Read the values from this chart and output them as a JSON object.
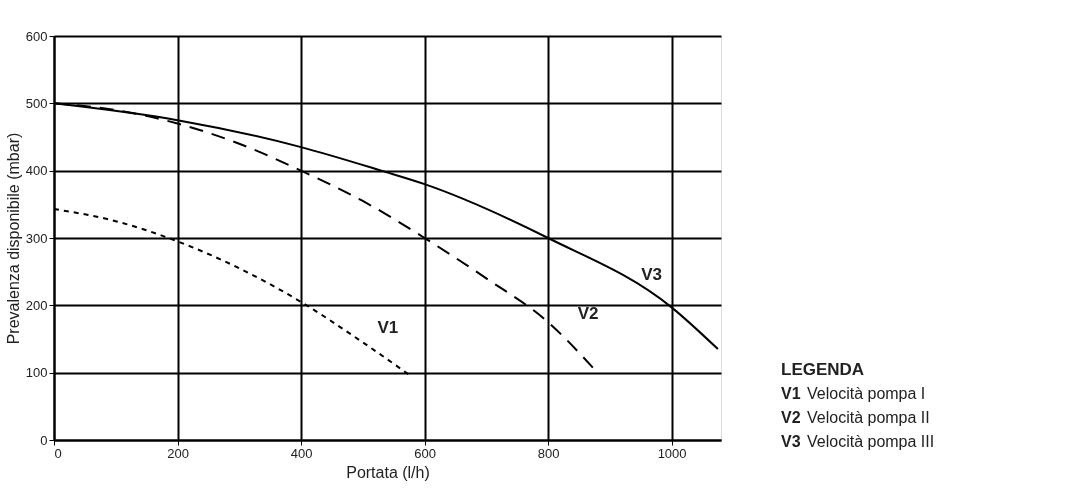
{
  "chart_data": {
    "type": "line",
    "xlabel": "Portata (l/h)",
    "ylabel": "Prevalenza disponibile (mbar)",
    "xlim": [
      0,
      1080
    ],
    "xticks": [
      0,
      200,
      400,
      600,
      800,
      1000
    ],
    "ylim": [
      0,
      600
    ],
    "yticks": [
      0,
      100,
      200,
      300,
      400,
      500,
      600
    ],
    "grid": true,
    "legend_title": "LEGENDA",
    "series": [
      {
        "name": "V1",
        "color": "#000000",
        "line_style": "dotted",
        "x": [
          0,
          100,
          200,
          300,
          400,
          500,
          578
        ],
        "values": [
          343,
          325,
          295,
          255,
          205,
          145,
          95
        ]
      },
      {
        "name": "V2",
        "color": "#000000",
        "line_style": "dashed",
        "x": [
          0,
          100,
          200,
          300,
          400,
          500,
          600,
          700,
          800,
          880
        ],
        "values": [
          500,
          490,
          470,
          440,
          400,
          355,
          300,
          240,
          175,
          100
        ]
      },
      {
        "name": "V3",
        "color": "#000000",
        "line_style": "solid",
        "x": [
          0,
          200,
          400,
          530,
          600,
          800,
          1000,
          1075
        ],
        "values": [
          500,
          475,
          435,
          400,
          380,
          300,
          197,
          135
        ]
      }
    ],
    "annotations": [
      "V1 Velocità pompa I",
      "V2 Velocità pompa II",
      "V3 Velocità pompa III"
    ]
  }
}
